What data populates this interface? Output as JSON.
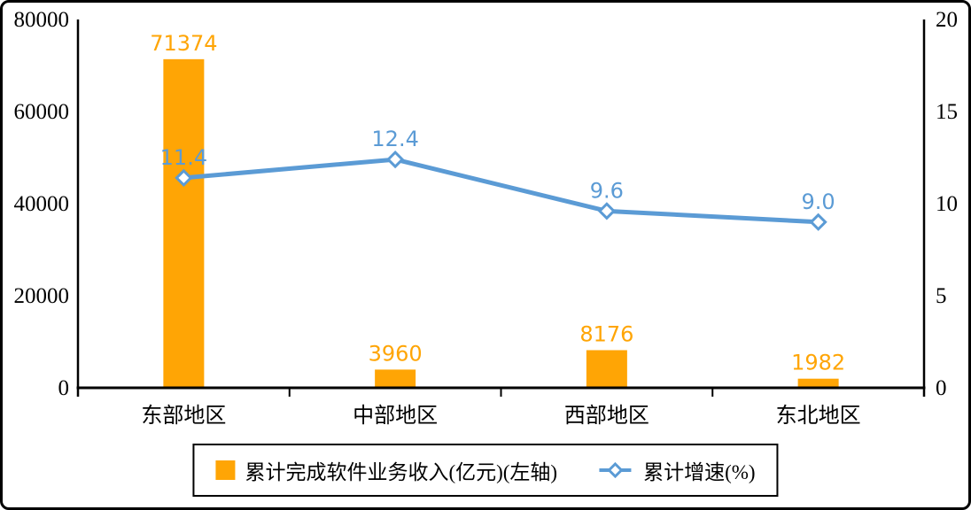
{
  "colors": {
    "bar": "#FFA505",
    "line": "#5B9BD5",
    "axis": "#000000",
    "background": "#FFFFFF",
    "frame_border": "#000000"
  },
  "chart_data": {
    "type": "bar",
    "subtype": "combo-bar-line",
    "title": "",
    "categories": [
      "东部地区",
      "中部地区",
      "西部地区",
      "东北地区"
    ],
    "series": [
      {
        "name": "累计完成软件业务收入(亿元)(左轴)",
        "type": "bar",
        "axis": "left",
        "values": [
          71374,
          3960,
          8176,
          1982
        ],
        "labels": [
          "71374",
          "3960",
          "8176",
          "1982"
        ],
        "color": "#FFA505"
      },
      {
        "name": "累计增速(%)",
        "type": "line",
        "axis": "right",
        "values": [
          11.4,
          12.4,
          9.6,
          9.0
        ],
        "labels": [
          "11.4",
          "12.4",
          "9.6",
          "9.0"
        ],
        "color": "#5B9BD5",
        "marker": "diamond-hollow"
      }
    ],
    "left_axis": {
      "min": 0,
      "max": 80000,
      "ticks": [
        0,
        20000,
        40000,
        60000,
        80000
      ],
      "tick_labels": [
        "0",
        "20000",
        "40000",
        "60000",
        "80000"
      ]
    },
    "right_axis": {
      "min": 0,
      "max": 20,
      "ticks": [
        0,
        5,
        10,
        15,
        20
      ],
      "tick_labels": [
        "0",
        "5",
        "10",
        "15",
        "20"
      ]
    },
    "grid": false,
    "legend_position": "bottom",
    "legend": [
      {
        "label": "累计完成软件业务收入(亿元)(左轴)",
        "marker": "square",
        "color": "#FFA505"
      },
      {
        "label": "累计增速(%)",
        "marker": "line-diamond",
        "color": "#5B9BD5"
      }
    ]
  }
}
